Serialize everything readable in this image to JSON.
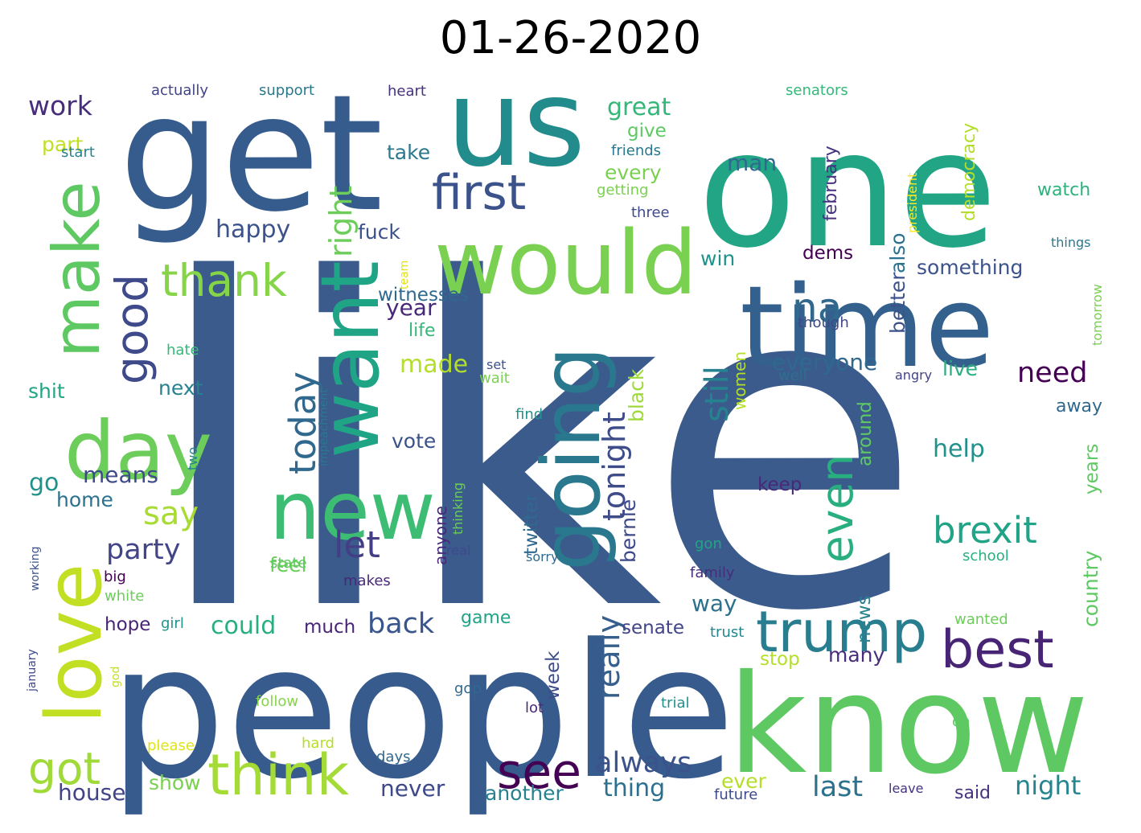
{
  "title": "01-26-2020",
  "words": [
    {
      "text": "like",
      "color": "#3b5b8c"
    },
    {
      "text": "people",
      "color": "#375b8d"
    },
    {
      "text": "get",
      "color": "#365c8d"
    },
    {
      "text": "one",
      "color": "#21a585"
    },
    {
      "text": "us",
      "color": "#228c8d"
    },
    {
      "text": "know",
      "color": "#5ec962"
    },
    {
      "text": "time",
      "color": "#34608d"
    },
    {
      "text": "would",
      "color": "#7ad151"
    },
    {
      "text": "want",
      "color": "#20a486"
    },
    {
      "text": "going",
      "color": "#2a788e"
    },
    {
      "text": "new",
      "color": "#3dbc74"
    },
    {
      "text": "love",
      "color": "#c2df23"
    },
    {
      "text": "day",
      "color": "#6ccd5a"
    },
    {
      "text": "make",
      "color": "#5ec962"
    },
    {
      "text": "think",
      "color": "#a5db36"
    },
    {
      "text": "trump",
      "color": "#287d8e"
    },
    {
      "text": "best",
      "color": "#482475"
    },
    {
      "text": "first",
      "color": "#3b528b"
    },
    {
      "text": "see",
      "color": "#440154"
    },
    {
      "text": "got",
      "color": "#a0da39"
    },
    {
      "text": "good",
      "color": "#3e4a89"
    },
    {
      "text": "thank",
      "color": "#86d549"
    },
    {
      "text": "brexit",
      "color": "#20a386"
    },
    {
      "text": "even",
      "color": "#29af7f"
    },
    {
      "text": "na",
      "color": "#31688e"
    },
    {
      "text": "today",
      "color": "#31688e"
    },
    {
      "text": "let",
      "color": "#433e85"
    },
    {
      "text": "say",
      "color": "#a8db34"
    },
    {
      "text": "still",
      "color": "#26828e"
    },
    {
      "text": "right",
      "color": "#6ccd5a"
    },
    {
      "text": "tonight",
      "color": "#3e4c8a"
    },
    {
      "text": "really",
      "color": "#355f8d"
    },
    {
      "text": "party",
      "color": "#414487"
    },
    {
      "text": "always",
      "color": "#3b528b"
    },
    {
      "text": "last",
      "color": "#2c728e"
    },
    {
      "text": "night",
      "color": "#25858e"
    },
    {
      "text": "need",
      "color": "#440154"
    },
    {
      "text": "everyone",
      "color": "#31688e"
    },
    {
      "text": "back",
      "color": "#39568c"
    },
    {
      "text": "could",
      "color": "#29af7f"
    },
    {
      "text": "work",
      "color": "#472d7b"
    },
    {
      "text": "great",
      "color": "#35b779"
    },
    {
      "text": "happy",
      "color": "#3b528b"
    },
    {
      "text": "also",
      "color": "#2c728e"
    },
    {
      "text": "year",
      "color": "#482878"
    },
    {
      "text": "made",
      "color": "#b5de2b"
    },
    {
      "text": "country",
      "color": "#5ec962"
    },
    {
      "text": "never",
      "color": "#3e4989"
    },
    {
      "text": "house",
      "color": "#414487"
    },
    {
      "text": "show",
      "color": "#7ad151"
    },
    {
      "text": "thing",
      "color": "#2d708e"
    },
    {
      "text": "another",
      "color": "#26828e"
    },
    {
      "text": "ever",
      "color": "#b5de2b"
    },
    {
      "text": "said",
      "color": "#46327e"
    },
    {
      "text": "go",
      "color": "#21918c"
    },
    {
      "text": "means",
      "color": "#3e4a89"
    },
    {
      "text": "home",
      "color": "#2c728e"
    },
    {
      "text": "feel",
      "color": "#6ccd5a"
    },
    {
      "text": "vote",
      "color": "#3b528b"
    },
    {
      "text": "twitter",
      "color": "#31688e"
    },
    {
      "text": "bernie",
      "color": "#3e4989"
    },
    {
      "text": "black",
      "color": "#9fda3a"
    },
    {
      "text": "way",
      "color": "#2c728e"
    },
    {
      "text": "senate",
      "color": "#414487"
    },
    {
      "text": "much",
      "color": "#482475"
    },
    {
      "text": "hope",
      "color": "#482475"
    },
    {
      "text": "game",
      "color": "#20a386"
    },
    {
      "text": "week",
      "color": "#3e4c8a"
    },
    {
      "text": "many",
      "color": "#472d7b"
    },
    {
      "text": "stop",
      "color": "#b5de2b"
    },
    {
      "text": "news",
      "color": "#26828e"
    },
    {
      "text": "help",
      "color": "#21918c"
    },
    {
      "text": "keep",
      "color": "#482878"
    },
    {
      "text": "live",
      "color": "#29af7f"
    },
    {
      "text": "away",
      "color": "#31688e"
    },
    {
      "text": "years",
      "color": "#5ec962"
    },
    {
      "text": "around",
      "color": "#5ec962"
    },
    {
      "text": "better",
      "color": "#3b528b"
    },
    {
      "text": "something",
      "color": "#3b528b"
    },
    {
      "text": "dems",
      "color": "#440154"
    },
    {
      "text": "win",
      "color": "#21918c"
    },
    {
      "text": "man",
      "color": "#31688e"
    },
    {
      "text": "every",
      "color": "#7ad151"
    },
    {
      "text": "give",
      "color": "#5ec962"
    },
    {
      "text": "take",
      "color": "#2a788e"
    },
    {
      "text": "fuck",
      "color": "#3b528b"
    },
    {
      "text": "witnesses",
      "color": "#31688e"
    },
    {
      "text": "life",
      "color": "#35b779"
    },
    {
      "text": "next",
      "color": "#26828e"
    },
    {
      "text": "shit",
      "color": "#21a585"
    },
    {
      "text": "part",
      "color": "#c2df23"
    },
    {
      "text": "anyone",
      "color": "#482878"
    },
    {
      "text": "watch",
      "color": "#2db27d"
    },
    {
      "text": "democracy",
      "color": "#b5de2b"
    },
    {
      "text": "february",
      "color": "#46327e"
    },
    {
      "text": "women",
      "color": "#b5de2b"
    },
    {
      "text": "actually",
      "color": "#414487"
    },
    {
      "text": "support",
      "color": "#2a788e"
    },
    {
      "text": "heart",
      "color": "#46327e"
    },
    {
      "text": "senators",
      "color": "#35b779"
    },
    {
      "text": "start",
      "color": "#26828e"
    },
    {
      "text": "friends",
      "color": "#2a788e"
    },
    {
      "text": "getting",
      "color": "#7ad151"
    },
    {
      "text": "three",
      "color": "#3e4a89"
    },
    {
      "text": "president",
      "color": "#fde725"
    },
    {
      "text": "team",
      "color": "#dfe318"
    },
    {
      "text": "things",
      "color": "#2a788e"
    },
    {
      "text": "tomorrow",
      "color": "#7ad151"
    },
    {
      "text": "though",
      "color": "#3e4989"
    },
    {
      "text": "angry",
      "color": "#414487"
    },
    {
      "text": "well",
      "color": "#2d708e"
    },
    {
      "text": "set",
      "color": "#3b528b"
    },
    {
      "text": "wait",
      "color": "#7ad151"
    },
    {
      "text": "hate",
      "color": "#35b779"
    },
    {
      "text": "impeachment",
      "color": "#2a788e"
    },
    {
      "text": "find",
      "color": "#21918c"
    },
    {
      "text": "thinking",
      "color": "#6ccd5a"
    },
    {
      "text": "two",
      "color": "#26828e"
    },
    {
      "text": "real",
      "color": "#3e4989"
    },
    {
      "text": "sorry",
      "color": "#31688e"
    },
    {
      "text": "gon",
      "color": "#21a585"
    },
    {
      "text": "school",
      "color": "#29af7f"
    },
    {
      "text": "state",
      "color": "#5ec962"
    },
    {
      "text": "working",
      "color": "#3b528b"
    },
    {
      "text": "big",
      "color": "#440154"
    },
    {
      "text": "white",
      "color": "#6ccd5a"
    },
    {
      "text": "makes",
      "color": "#482878"
    },
    {
      "text": "family",
      "color": "#472d7b"
    },
    {
      "text": "girl",
      "color": "#21918c"
    },
    {
      "text": "trust",
      "color": "#25858e"
    },
    {
      "text": "wanted",
      "color": "#6ccd5a"
    },
    {
      "text": "january",
      "color": "#3e4989"
    },
    {
      "text": "god",
      "color": "#c2df23"
    },
    {
      "text": "gop",
      "color": "#31688e"
    },
    {
      "text": "follow",
      "color": "#86d549"
    },
    {
      "text": "lot",
      "color": "#482878"
    },
    {
      "text": "trial",
      "color": "#21918c"
    },
    {
      "text": "oh",
      "color": "#5ec962"
    },
    {
      "text": "please",
      "color": "#dfe318"
    },
    {
      "text": "hard",
      "color": "#b5de2b"
    },
    {
      "text": "days",
      "color": "#31688e"
    },
    {
      "text": "leave",
      "color": "#46327e"
    },
    {
      "text": "future",
      "color": "#3e4a89"
    }
  ]
}
